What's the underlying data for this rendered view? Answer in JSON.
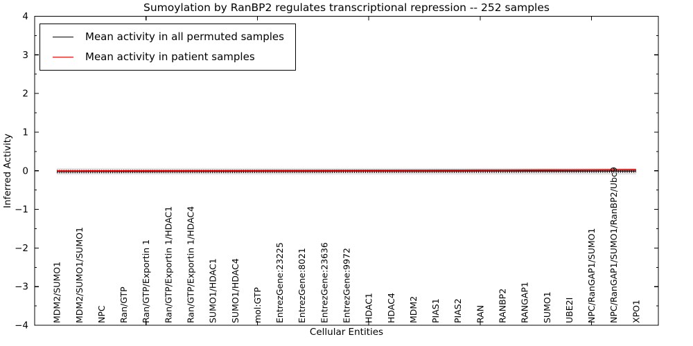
{
  "chart_data": {
    "type": "line",
    "title": "Sumoylation by RanBP2 regulates transcriptional repression -- 252 samples",
    "xlabel": "Cellular Entities",
    "ylabel": "Inferred Activity",
    "categories": [
      "MDM2/SUMO1",
      "MDM2/SUMO1/SUMO1",
      "NPC",
      "Ran/GTP",
      "Ran/GTP/Exportin 1",
      "Ran/GTP/Exportin 1/HDAC1",
      "Ran/GTP/Exportin 1/HDAC4",
      "SUMO1/HDAC1",
      "SUMO1/HDAC4",
      "mol:GTP",
      "EntrezGene:23225",
      "EntrezGene:8021",
      "EntrezGene:23636",
      "EntrezGene:9972",
      "HDAC1",
      "HDAC4",
      "MDM2",
      "PIAS1",
      "PIAS2",
      "RAN",
      "RANBP2",
      "RANGAP1",
      "SUMO1",
      "UBE2I",
      "NPC/RanGAP1/SUMO1",
      "NPC/RanGAP1/SUMO1/RanBP2/Ubc9",
      "XPO1"
    ],
    "x": [
      1,
      2,
      3,
      4,
      5,
      6,
      7,
      8,
      9,
      10,
      11,
      12,
      13,
      14,
      15,
      16,
      17,
      18,
      19,
      20,
      21,
      22,
      23,
      24,
      25,
      26,
      27
    ],
    "series": [
      {
        "name": "Mean activity in all permuted samples",
        "color": "#000000",
        "marker": "+",
        "values": [
          -0.02,
          -0.02,
          -0.02,
          -0.019,
          -0.019,
          -0.018,
          -0.018,
          -0.017,
          -0.017,
          -0.016,
          -0.016,
          -0.015,
          -0.015,
          -0.014,
          -0.014,
          -0.013,
          -0.013,
          -0.012,
          -0.012,
          -0.011,
          -0.011,
          -0.01,
          -0.01,
          -0.01,
          -0.009,
          -0.009,
          -0.009
        ]
      },
      {
        "name": "Mean activity in patient samples",
        "color": "#ff0000",
        "values": [
          -0.005,
          -0.004,
          -0.003,
          -0.002,
          -0.001,
          0.0,
          0.001,
          0.002,
          0.003,
          0.005,
          0.006,
          0.007,
          0.008,
          0.009,
          0.01,
          0.011,
          0.013,
          0.014,
          0.015,
          0.017,
          0.018,
          0.02,
          0.021,
          0.023,
          0.024,
          0.026,
          0.028
        ]
      }
    ],
    "band": {
      "series": "Mean activity in all permuted samples",
      "upper": 0.07,
      "lower": -0.1,
      "color": "#e5e5e5"
    },
    "xlim": [
      0,
      28
    ],
    "ylim": [
      -4,
      4
    ],
    "yticks": [
      -4,
      -3,
      -2,
      -1,
      0,
      1,
      2,
      3,
      4
    ],
    "ytick_labels": [
      "−4",
      "−3",
      "−2",
      "−1",
      "0",
      "1",
      "2",
      "3",
      "4"
    ],
    "yminor_step": 0.5,
    "xticks": [
      5,
      10,
      15,
      20,
      25
    ],
    "grid": false,
    "tick_direction": "in",
    "legend": {
      "position": "upper left",
      "entries": [
        {
          "label": "Mean activity in all permuted samples",
          "color": "#000000"
        },
        {
          "label": "Mean activity in patient samples",
          "color": "#ff0000"
        }
      ]
    }
  }
}
